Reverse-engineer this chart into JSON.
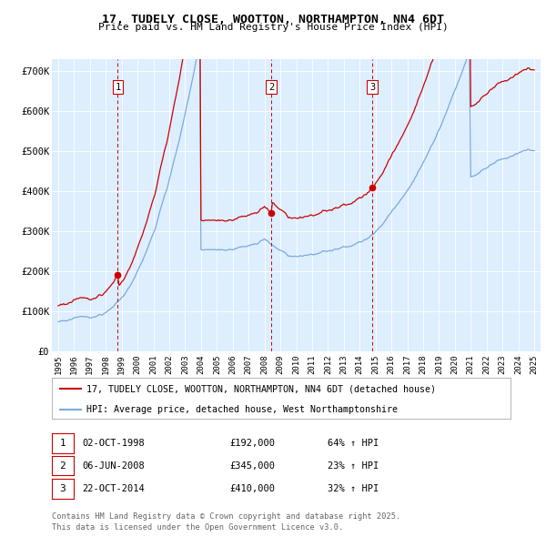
{
  "title": "17, TUDELY CLOSE, WOOTTON, NORTHAMPTON, NN4 6DT",
  "subtitle": "Price paid vs. HM Land Registry's House Price Index (HPI)",
  "legend_line1": "17, TUDELY CLOSE, WOOTTON, NORTHAMPTON, NN4 6DT (detached house)",
  "legend_line2": "HPI: Average price, detached house, West Northamptonshire",
  "footer_line1": "Contains HM Land Registry data © Crown copyright and database right 2025.",
  "footer_line2": "This data is licensed under the Open Government Licence v3.0.",
  "sale_color": "#cc0000",
  "hpi_color": "#7aaadd",
  "vline_color": "#cc0000",
  "bg_color": "#ddeeff",
  "grid_color": "#ffffff",
  "sales": [
    {
      "date_num": 1998.75,
      "price": 192000,
      "label": "1",
      "date_str": "02-OCT-1998",
      "pct": "64%",
      "dir": "↑"
    },
    {
      "date_num": 2008.42,
      "price": 345000,
      "label": "2",
      "date_str": "06-JUN-2008",
      "pct": "23%",
      "dir": "↑"
    },
    {
      "date_num": 2014.8,
      "price": 410000,
      "label": "3",
      "date_str": "22-OCT-2014",
      "pct": "32%",
      "dir": "↑"
    }
  ],
  "ylim": [
    0,
    730000
  ],
  "xlim": [
    1994.6,
    2025.4
  ],
  "yticks": [
    0,
    100000,
    200000,
    300000,
    400000,
    500000,
    600000,
    700000
  ],
  "ytick_labels": [
    "£0",
    "£100K",
    "£200K",
    "£300K",
    "£400K",
    "£500K",
    "£600K",
    "£700K"
  ]
}
